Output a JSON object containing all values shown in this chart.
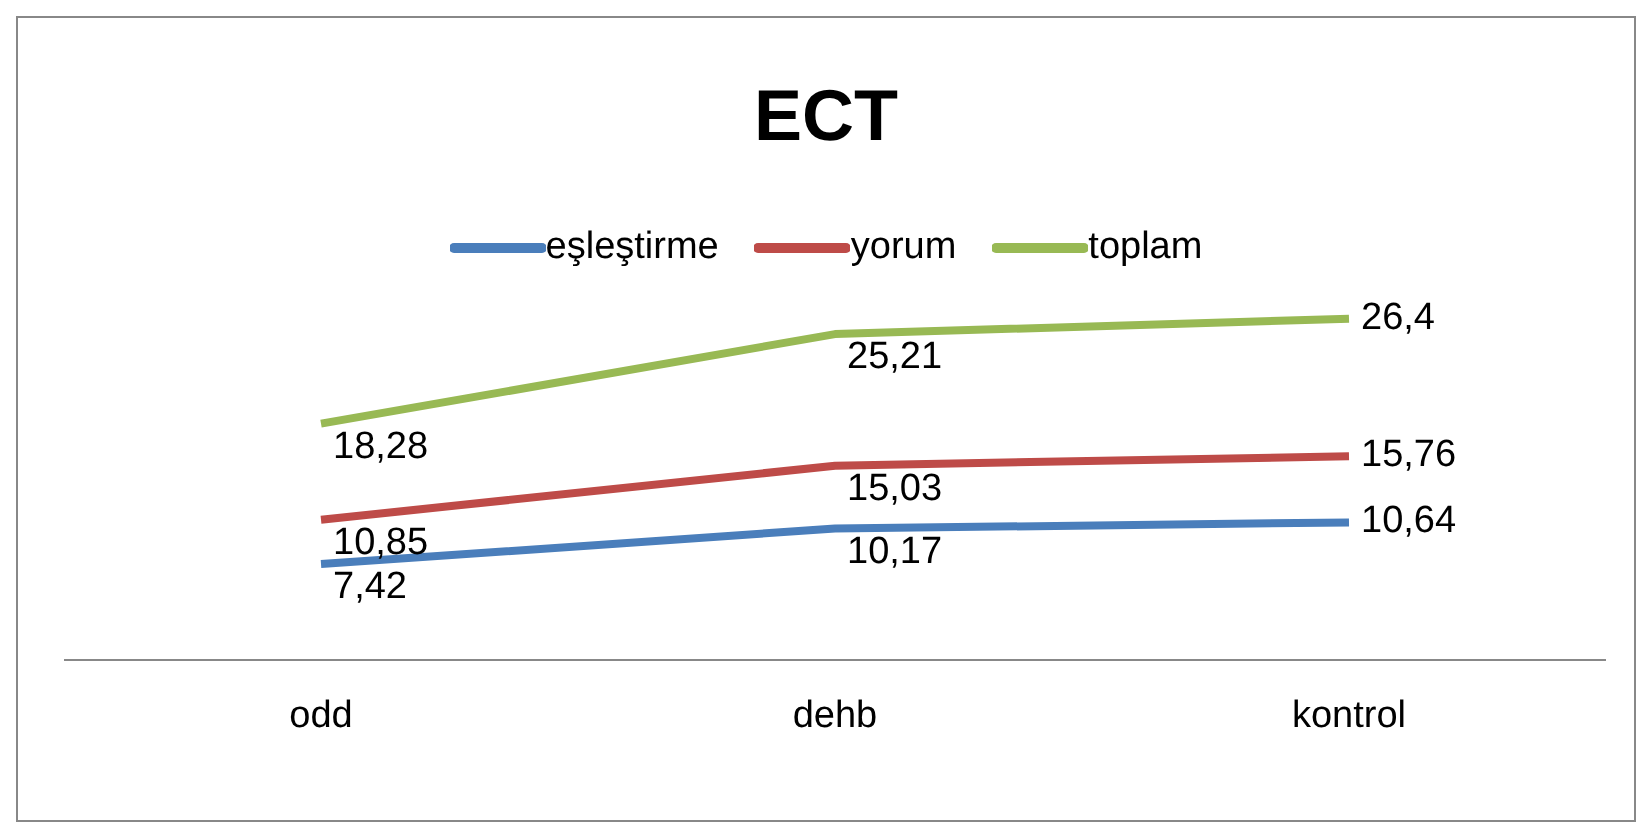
{
  "chart_data": {
    "type": "line",
    "title": "ECT",
    "categories": [
      "odd",
      "dehb",
      "kontrol"
    ],
    "series": [
      {
        "name": "eşleştirme",
        "color": "#4a7ebb",
        "values": [
          7.42,
          10.17,
          10.64
        ],
        "value_labels": [
          "7,42",
          "10,17",
          "10,64"
        ]
      },
      {
        "name": "yorum",
        "color": "#be4b48",
        "values": [
          10.85,
          15.03,
          15.76
        ],
        "value_labels": [
          "10,85",
          "15,03",
          "15,76"
        ]
      },
      {
        "name": "toplam",
        "color": "#98b954",
        "values": [
          18.28,
          25.21,
          26.4
        ],
        "value_labels": [
          "18,28",
          "25,21",
          "26,4"
        ]
      }
    ],
    "tick_labels": "x",
    "legend": "top",
    "grid": false,
    "marker": "none"
  }
}
